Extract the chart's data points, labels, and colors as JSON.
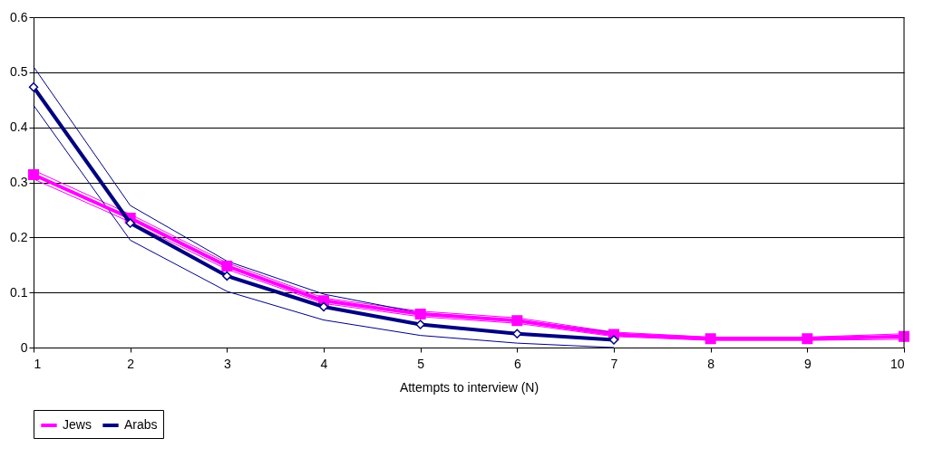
{
  "chart_data": {
    "type": "line",
    "xlabel": "Attempts to interview (N)",
    "x": [
      1,
      2,
      3,
      4,
      5,
      6,
      7,
      8,
      9,
      10
    ],
    "xlim": [
      1,
      10
    ],
    "xticks": [
      1,
      2,
      3,
      4,
      5,
      6,
      7,
      8,
      9,
      10
    ],
    "ylim": [
      0,
      0.6
    ],
    "yticks": [
      0,
      0.1,
      0.2,
      0.3,
      0.4,
      0.5,
      0.6
    ],
    "grid": "y",
    "legend": "bottom",
    "line_style": "solid",
    "series": [
      {
        "color": "#ff00ff",
        "marker": "none",
        "values": [
          0.306,
          0.228,
          0.142,
          0.08,
          0.056,
          0.044,
          0.02,
          0.013,
          0.013,
          0.015
        ]
      },
      {
        "color": "#ff00ff",
        "marker": "none",
        "values": [
          0.322,
          0.242,
          0.154,
          0.09,
          0.066,
          0.054,
          0.028,
          0.019,
          0.019,
          0.025
        ]
      },
      {
        "color": "#000080",
        "marker": "none",
        "values": [
          0.44,
          0.195,
          0.102,
          0.05,
          0.022,
          0.008,
          0.0,
          null,
          null,
          null
        ]
      },
      {
        "color": "#000080",
        "marker": "none",
        "values": [
          0.51,
          0.258,
          0.157,
          0.097,
          0.063,
          0.05,
          0.027,
          null,
          null,
          null
        ]
      },
      {
        "name": "Jews",
        "color": "#ff00ff",
        "marker": "square",
        "values": [
          0.314,
          0.235,
          0.148,
          0.085,
          0.061,
          0.049,
          0.024,
          0.016,
          0.016,
          0.02
        ]
      },
      {
        "name": "Arabs",
        "color": "#000080",
        "marker": "diamond",
        "values": [
          0.473,
          0.226,
          0.13,
          0.074,
          0.042,
          0.025,
          0.014,
          null,
          null,
          null
        ]
      }
    ]
  }
}
